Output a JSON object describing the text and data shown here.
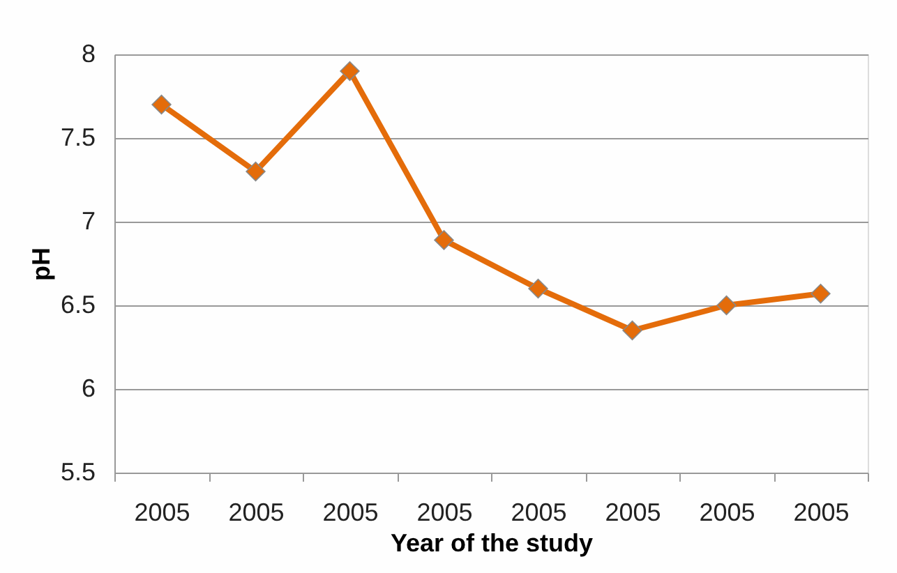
{
  "chart_data": {
    "type": "line",
    "xlabel": "Year of the study",
    "ylabel": "pH",
    "categories": [
      "2005",
      "2005",
      "2005",
      "2005",
      "2005",
      "2005",
      "2005",
      "2005"
    ],
    "series": [
      {
        "color": "#e46c0a",
        "values": [
          7.7,
          7.3,
          7.9,
          6.89,
          6.6,
          6.35,
          6.5,
          6.57
        ]
      }
    ],
    "ylim": [
      5.5,
      8
    ],
    "yticks": [
      5.5,
      6,
      6.5,
      7,
      7.5,
      8
    ],
    "grid": "y",
    "marker": "diamond",
    "line_style": "solid",
    "legend": false
  }
}
